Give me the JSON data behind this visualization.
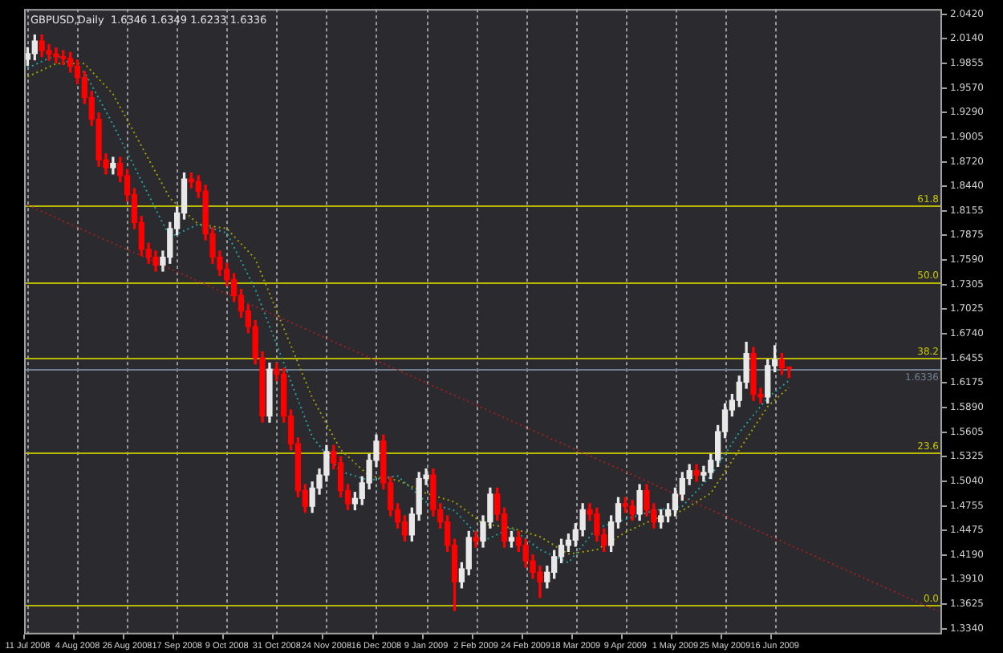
{
  "chart_data": {
    "type": "candlestick",
    "title": "GBPUSD,Daily  1.6346 1.6349 1.6233 1.6336",
    "categories": [
      "11 Jul 2008",
      null,
      null,
      null,
      null,
      null,
      null,
      "4 Aug 2008",
      null,
      null,
      null,
      null,
      null,
      null,
      "26 Aug 2008",
      null,
      null,
      null,
      null,
      null,
      null,
      "17 Sep 2008",
      null,
      null,
      null,
      null,
      null,
      null,
      "9 Oct 2008",
      null,
      null,
      null,
      null,
      null,
      null,
      "31 Oct 2008",
      null,
      null,
      null,
      null,
      null,
      null,
      "24 Nov 2008",
      null,
      null,
      null,
      null,
      null,
      null,
      "16 Dec 2008",
      null,
      null,
      null,
      null,
      null,
      null,
      "9 Jan 2009",
      null,
      null,
      null,
      null,
      null,
      null,
      "2 Feb 2009",
      null,
      null,
      null,
      null,
      null,
      null,
      "24 Feb 2009",
      null,
      null,
      null,
      null,
      null,
      null,
      "18 Mar 2009",
      null,
      null,
      null,
      null,
      null,
      null,
      "9 Apr 2009",
      null,
      null,
      null,
      null,
      null,
      null,
      "1 May 2009",
      null,
      null,
      null,
      null,
      null,
      null,
      "25 May 2009",
      null,
      null,
      null,
      null,
      null,
      null,
      "16 Jun 2009",
      null,
      null,
      null,
      null,
      null,
      null,
      null,
      null,
      null,
      null,
      null,
      null,
      null,
      null,
      null,
      null,
      null,
      null,
      null,
      null,
      null,
      null,
      null
    ],
    "series": [
      {
        "ohlc": [
          [
            1.99,
            2.0035,
            1.983,
            1.9965
          ],
          [
            1.9965,
            2.018,
            1.9895,
            2.011
          ],
          [
            2.011,
            2.018,
            1.993,
            2.0
          ],
          [
            2.0,
            2.007,
            1.989,
            1.996
          ],
          [
            1.996,
            2.003,
            1.986,
            1.993
          ],
          [
            1.993,
            2.0,
            1.984,
            1.991
          ],
          [
            1.991,
            1.998,
            1.975,
            1.982
          ],
          [
            1.982,
            1.989,
            1.962,
            1.969
          ],
          [
            1.969,
            1.976,
            1.939,
            1.946
          ],
          [
            1.946,
            1.953,
            1.914,
            1.921
          ],
          [
            1.921,
            1.928,
            1.867,
            1.874
          ],
          [
            1.874,
            1.881,
            1.858,
            1.865
          ],
          [
            1.865,
            1.877,
            1.858,
            1.87
          ],
          [
            1.87,
            1.877,
            1.849,
            1.856
          ],
          [
            1.856,
            1.863,
            1.827,
            1.834
          ],
          [
            1.834,
            1.841,
            1.795,
            1.802
          ],
          [
            1.802,
            1.809,
            1.764,
            1.771
          ],
          [
            1.771,
            1.778,
            1.755,
            1.762
          ],
          [
            1.762,
            1.769,
            1.746,
            1.753
          ],
          [
            1.753,
            1.769,
            1.746,
            1.762
          ],
          [
            1.762,
            1.802,
            1.755,
            1.795
          ],
          [
            1.795,
            1.82,
            1.788,
            1.813
          ],
          [
            1.813,
            1.859,
            1.806,
            1.852
          ],
          [
            1.852,
            1.859,
            1.842,
            1.849
          ],
          [
            1.849,
            1.856,
            1.831,
            1.838
          ],
          [
            1.838,
            1.845,
            1.782,
            1.789
          ],
          [
            1.789,
            1.796,
            1.755,
            1.762
          ],
          [
            1.762,
            1.769,
            1.741,
            1.748
          ],
          [
            1.748,
            1.755,
            1.729,
            1.736
          ],
          [
            1.736,
            1.743,
            1.711,
            1.718
          ],
          [
            1.718,
            1.725,
            1.693,
            1.7
          ],
          [
            1.7,
            1.707,
            1.675,
            1.682
          ],
          [
            1.682,
            1.689,
            1.639,
            1.646
          ],
          [
            1.646,
            1.653,
            1.572,
            1.579
          ],
          [
            1.579,
            1.64,
            1.572,
            1.633
          ],
          [
            1.633,
            1.64,
            1.62,
            1.627
          ],
          [
            1.627,
            1.634,
            1.572,
            1.579
          ],
          [
            1.579,
            1.586,
            1.54,
            1.547
          ],
          [
            1.547,
            1.554,
            1.486,
            1.493
          ],
          [
            1.493,
            1.5,
            1.468,
            1.475
          ],
          [
            1.475,
            1.503,
            1.468,
            1.496
          ],
          [
            1.496,
            1.518,
            1.489,
            1.511
          ],
          [
            1.511,
            1.545,
            1.504,
            1.538
          ],
          [
            1.538,
            1.545,
            1.518,
            1.525
          ],
          [
            1.525,
            1.532,
            1.486,
            1.493
          ],
          [
            1.493,
            1.5,
            1.471,
            1.478
          ],
          [
            1.478,
            1.491,
            1.471,
            1.484
          ],
          [
            1.484,
            1.509,
            1.477,
            1.502
          ],
          [
            1.502,
            1.535,
            1.495,
            1.528
          ],
          [
            1.528,
            1.557,
            1.521,
            1.55
          ],
          [
            1.55,
            1.557,
            1.495,
            1.502
          ],
          [
            1.502,
            1.509,
            1.464,
            1.471
          ],
          [
            1.471,
            1.478,
            1.45,
            1.457
          ],
          [
            1.457,
            1.464,
            1.435,
            1.442
          ],
          [
            1.442,
            1.473,
            1.435,
            1.466
          ],
          [
            1.466,
            1.514,
            1.459,
            1.507
          ],
          [
            1.507,
            1.518,
            1.5,
            1.511
          ],
          [
            1.511,
            1.518,
            1.464,
            1.471
          ],
          [
            1.471,
            1.478,
            1.45,
            1.457
          ],
          [
            1.457,
            1.464,
            1.423,
            1.43
          ],
          [
            1.43,
            1.437,
            1.355,
            1.388
          ],
          [
            1.388,
            1.41,
            1.381,
            1.403
          ],
          [
            1.403,
            1.446,
            1.396,
            1.439
          ],
          [
            1.439,
            1.446,
            1.428,
            1.435
          ],
          [
            1.435,
            1.464,
            1.428,
            1.457
          ],
          [
            1.457,
            1.496,
            1.45,
            1.489
          ],
          [
            1.489,
            1.496,
            1.459,
            1.466
          ],
          [
            1.466,
            1.473,
            1.428,
            1.435
          ],
          [
            1.435,
            1.446,
            1.428,
            1.439
          ],
          [
            1.439,
            1.446,
            1.423,
            1.43
          ],
          [
            1.43,
            1.437,
            1.405,
            1.412
          ],
          [
            1.412,
            1.419,
            1.392,
            1.399
          ],
          [
            1.399,
            1.406,
            1.37,
            1.388
          ],
          [
            1.388,
            1.406,
            1.381,
            1.399
          ],
          [
            1.399,
            1.424,
            1.392,
            1.417
          ],
          [
            1.417,
            1.437,
            1.41,
            1.43
          ],
          [
            1.43,
            1.443,
            1.423,
            1.436
          ],
          [
            1.436,
            1.455,
            1.429,
            1.448
          ],
          [
            1.448,
            1.478,
            1.441,
            1.471
          ],
          [
            1.471,
            1.478,
            1.459,
            1.466
          ],
          [
            1.466,
            1.473,
            1.435,
            1.442
          ],
          [
            1.442,
            1.449,
            1.423,
            1.43
          ],
          [
            1.43,
            1.464,
            1.423,
            1.457
          ],
          [
            1.457,
            1.485,
            1.45,
            1.478
          ],
          [
            1.478,
            1.485,
            1.468,
            1.475
          ],
          [
            1.475,
            1.482,
            1.459,
            1.466
          ],
          [
            1.466,
            1.5,
            1.459,
            1.493
          ],
          [
            1.493,
            1.5,
            1.464,
            1.471
          ],
          [
            1.471,
            1.478,
            1.45,
            1.457
          ],
          [
            1.457,
            1.471,
            1.45,
            1.464
          ],
          [
            1.464,
            1.478,
            1.457,
            1.471
          ],
          [
            1.471,
            1.496,
            1.464,
            1.489
          ],
          [
            1.489,
            1.514,
            1.482,
            1.507
          ],
          [
            1.507,
            1.523,
            1.5,
            1.516
          ],
          [
            1.516,
            1.523,
            1.504,
            1.511
          ],
          [
            1.511,
            1.521,
            1.504,
            1.514
          ],
          [
            1.514,
            1.535,
            1.507,
            1.528
          ],
          [
            1.528,
            1.568,
            1.521,
            1.561
          ],
          [
            1.561,
            1.593,
            1.554,
            1.586
          ],
          [
            1.586,
            1.604,
            1.579,
            1.597
          ],
          [
            1.597,
            1.625,
            1.59,
            1.618
          ],
          [
            1.618,
            1.664,
            1.611,
            1.651
          ],
          [
            1.651,
            1.658,
            1.597,
            1.604
          ],
          [
            1.604,
            1.611,
            1.594,
            1.601
          ],
          [
            1.601,
            1.644,
            1.594,
            1.637
          ],
          [
            1.637,
            1.66,
            1.63,
            1.644
          ],
          [
            1.644,
            1.651,
            1.627,
            1.6346
          ],
          [
            1.6346,
            1.6349,
            1.6233,
            1.6336
          ],
          null,
          null,
          null,
          null,
          null,
          null,
          null,
          null,
          null,
          null,
          null,
          null,
          null,
          null,
          null,
          null,
          null,
          null,
          null,
          null,
          null
        ],
        "colors": [
          "#e8e8e8",
          "#e8e8e8",
          "#ff0000",
          "#ff0000",
          "#ff0000",
          "#ff0000",
          "#ff0000",
          "#ff0000",
          "#ff0000",
          "#ff0000",
          "#ff0000",
          "#ff0000",
          "#e8e8e8",
          "#ff0000",
          "#ff0000",
          "#ff0000",
          "#ff0000",
          "#ff0000",
          "#ff0000",
          "#e8e8e8",
          "#e8e8e8",
          "#e8e8e8",
          "#e8e8e8",
          "#ff0000",
          "#ff0000",
          "#ff0000",
          "#ff0000",
          "#ff0000",
          "#ff0000",
          "#ff0000",
          "#ff0000",
          "#ff0000",
          "#ff0000",
          "#ff0000",
          "#e8e8e8",
          "#ff0000",
          "#ff0000",
          "#ff0000",
          "#ff0000",
          "#ff0000",
          "#e8e8e8",
          "#e8e8e8",
          "#e8e8e8",
          "#ff0000",
          "#ff0000",
          "#ff0000",
          "#e8e8e8",
          "#e8e8e8",
          "#e8e8e8",
          "#e8e8e8",
          "#ff0000",
          "#ff0000",
          "#ff0000",
          "#ff0000",
          "#e8e8e8",
          "#e8e8e8",
          "#e8e8e8",
          "#ff0000",
          "#ff0000",
          "#ff0000",
          "#ff0000",
          "#e8e8e8",
          "#e8e8e8",
          "#ff0000",
          "#e8e8e8",
          "#e8e8e8",
          "#ff0000",
          "#ff0000",
          "#e8e8e8",
          "#ff0000",
          "#ff0000",
          "#ff0000",
          "#ff0000",
          "#e8e8e8",
          "#e8e8e8",
          "#e8e8e8",
          "#e8e8e8",
          "#e8e8e8",
          "#e8e8e8",
          "#ff0000",
          "#ff0000",
          "#ff0000",
          "#e8e8e8",
          "#e8e8e8",
          "#ff0000",
          "#ff0000",
          "#e8e8e8",
          "#ff0000",
          "#ff0000",
          "#e8e8e8",
          "#e8e8e8",
          "#e8e8e8",
          "#e8e8e8",
          "#e8e8e8",
          "#ff0000",
          "#e8e8e8",
          "#e8e8e8",
          "#e8e8e8",
          "#e8e8e8",
          "#e8e8e8",
          "#e8e8e8",
          "#e8e8e8",
          "#ff0000",
          "#ff0000",
          "#e8e8e8",
          "#e8e8e8",
          "#ff0000",
          "#ff0000",
          null,
          null,
          null,
          null,
          null,
          null,
          null,
          null,
          null,
          null,
          null,
          null,
          null,
          null,
          null,
          null,
          null,
          null,
          null,
          null,
          null
        ]
      },
      {
        "type": "line",
        "color": "#20a0a0",
        "line_style": "dotted",
        "values": [
          1.98,
          null,
          null,
          null,
          1.995,
          null,
          null,
          null,
          1.975,
          null,
          null,
          null,
          1.915,
          null,
          null,
          null,
          1.85,
          null,
          null,
          null,
          1.785,
          null,
          null,
          null,
          1.8,
          null,
          null,
          null,
          1.79,
          null,
          null,
          null,
          1.725,
          null,
          null,
          null,
          1.64,
          null,
          null,
          null,
          1.555,
          null,
          null,
          null,
          1.515,
          null,
          null,
          null,
          1.505,
          null,
          null,
          null,
          1.51,
          null,
          null,
          null,
          1.48,
          null,
          null,
          null,
          1.47,
          null,
          null,
          null,
          1.435,
          null,
          null,
          null,
          1.45,
          null,
          null,
          null,
          1.425,
          null,
          null,
          null,
          1.41,
          null,
          null,
          null,
          1.45,
          null,
          null,
          null,
          1.46,
          null,
          null,
          null,
          1.47,
          null,
          null,
          null,
          1.475,
          null,
          null,
          null,
          1.51,
          null,
          null,
          null,
          1.56,
          null,
          null,
          null,
          1.6,
          null,
          null,
          1.62,
          null,
          null,
          null,
          null,
          null,
          null,
          null,
          null,
          null,
          null,
          null,
          null,
          null,
          null,
          null,
          null,
          null,
          null,
          null,
          null,
          null
        ]
      },
      {
        "type": "line",
        "color": "#a0a000",
        "line_style": "dotted",
        "values": [
          1.97,
          null,
          null,
          null,
          1.985,
          null,
          null,
          null,
          1.985,
          null,
          null,
          null,
          1.95,
          null,
          null,
          null,
          1.89,
          null,
          null,
          null,
          1.83,
          null,
          null,
          null,
          1.8,
          null,
          null,
          null,
          1.795,
          null,
          null,
          null,
          1.76,
          null,
          null,
          null,
          1.68,
          null,
          null,
          null,
          1.6,
          null,
          null,
          null,
          1.54,
          null,
          null,
          null,
          1.51,
          null,
          null,
          null,
          1.505,
          null,
          null,
          null,
          1.49,
          null,
          null,
          null,
          1.48,
          null,
          null,
          null,
          1.455,
          null,
          null,
          null,
          1.45,
          null,
          null,
          null,
          1.44,
          null,
          null,
          null,
          1.42,
          null,
          null,
          null,
          1.425,
          null,
          null,
          null,
          1.445,
          null,
          null,
          null,
          1.46,
          null,
          null,
          null,
          1.47,
          null,
          null,
          null,
          1.49,
          null,
          null,
          null,
          1.54,
          null,
          null,
          null,
          1.59,
          null,
          null,
          1.612,
          null,
          null,
          null,
          null,
          null,
          null,
          null,
          null,
          null,
          null,
          null,
          null,
          null,
          null,
          null,
          null,
          null,
          null,
          null,
          null,
          null
        ]
      },
      {
        "type": "line",
        "color": "#a02020",
        "line_style": "dotted",
        "values": [
          1.822,
          null,
          null,
          null,
          null,
          null,
          null,
          null,
          null,
          null,
          null,
          null,
          null,
          null,
          null,
          null,
          null,
          null,
          null,
          null,
          null,
          null,
          null,
          null,
          null,
          null,
          null,
          null,
          null,
          null,
          null,
          null,
          null,
          null,
          null,
          null,
          null,
          null,
          null,
          null,
          null,
          null,
          null,
          null,
          null,
          null,
          null,
          null,
          null,
          null,
          null,
          null,
          null,
          null,
          null,
          null,
          null,
          null,
          null,
          null,
          null,
          null,
          null,
          null,
          null,
          null,
          null,
          null,
          null,
          null,
          null,
          null,
          null,
          null,
          null,
          null,
          null,
          null,
          null,
          null,
          null,
          null,
          null,
          null,
          null,
          null,
          null,
          null,
          null,
          null,
          null,
          null,
          null,
          null,
          null,
          null,
          null,
          null,
          null,
          null,
          null,
          null,
          null,
          null,
          null,
          null,
          null,
          null,
          null,
          null,
          null,
          null,
          null,
          null,
          null,
          null,
          null,
          null,
          null,
          null,
          null,
          null,
          null,
          null,
          null,
          null,
          null,
          null,
          1.354
        ]
      }
    ],
    "ylim": [
      1.3274,
      2.048
    ],
    "yticks": [
      {
        "value": 2.042,
        "label": "2.0420"
      },
      {
        "value": 2.014,
        "label": "2.0140"
      },
      1.9855,
      {
        "value": 1.957,
        "label": "1.9570"
      },
      {
        "value": 1.929,
        "label": "1.9290"
      },
      1.9005,
      {
        "value": 1.872,
        "label": "1.8720"
      },
      {
        "value": 1.844,
        "label": "1.8440"
      },
      1.8155,
      1.7875,
      {
        "value": 1.759,
        "label": "1.7590"
      },
      1.7305,
      1.7025,
      {
        "value": 1.674,
        "label": "1.6740"
      },
      1.6455,
      1.6175,
      {
        "value": 1.589,
        "label": "1.5890"
      },
      1.5605,
      1.5325,
      {
        "value": 1.504,
        "label": "1.5040"
      },
      1.4755,
      1.4475,
      {
        "value": 1.419,
        "label": "1.4190"
      },
      {
        "value": 1.391,
        "label": "1.3910"
      },
      1.3625,
      {
        "value": 1.334,
        "label": "1.3340"
      }
    ],
    "ref_lines": [
      {
        "axis": "y",
        "value": 1.8212,
        "color": "#b8b800"
      },
      {
        "axis": "y",
        "value": 1.7333,
        "color": "#b8b800"
      },
      {
        "axis": "y",
        "value": 1.6454,
        "color": "#b8b800"
      },
      {
        "axis": "y",
        "value": 1.6336,
        "label": "1.6336",
        "color": "#708090"
      },
      {
        "axis": "y",
        "value": 1.5366,
        "color": "#b8b800"
      },
      {
        "axis": "y",
        "value": 1.3608,
        "color": "#b8b800"
      }
    ],
    "annotations": [
      {
        "text": "61.8",
        "y": 1.8212
      },
      {
        "text": "50.0",
        "y": 1.7333
      },
      {
        "text": "38.2",
        "y": 1.6454
      },
      {
        "text": "23.6",
        "y": 1.5366
      },
      {
        "text": "0.0",
        "y": 1.3608
      }
    ],
    "grid": "x",
    "legend": false
  }
}
